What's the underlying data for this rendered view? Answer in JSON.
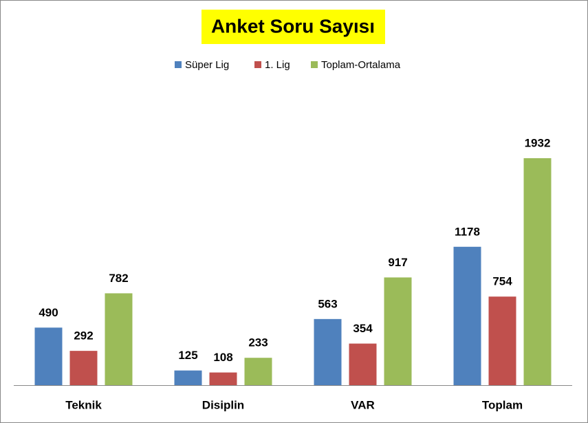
{
  "chart_data": {
    "type": "bar",
    "title": "Anket Soru Sayısı",
    "categories": [
      "Teknik",
      "Disiplin",
      "VAR",
      "Toplam"
    ],
    "series": [
      {
        "name": "Süper Lig",
        "color": "#4f81bd",
        "values": [
          490,
          125,
          563,
          1178
        ]
      },
      {
        "name": "1. Lig",
        "color": "#c0504d",
        "values": [
          292,
          108,
          354,
          754
        ]
      },
      {
        "name": "Toplam-Ortalama",
        "color": "#9bbb59",
        "values": [
          782,
          233,
          917,
          1932
        ]
      }
    ],
    "legend": "top"
  }
}
